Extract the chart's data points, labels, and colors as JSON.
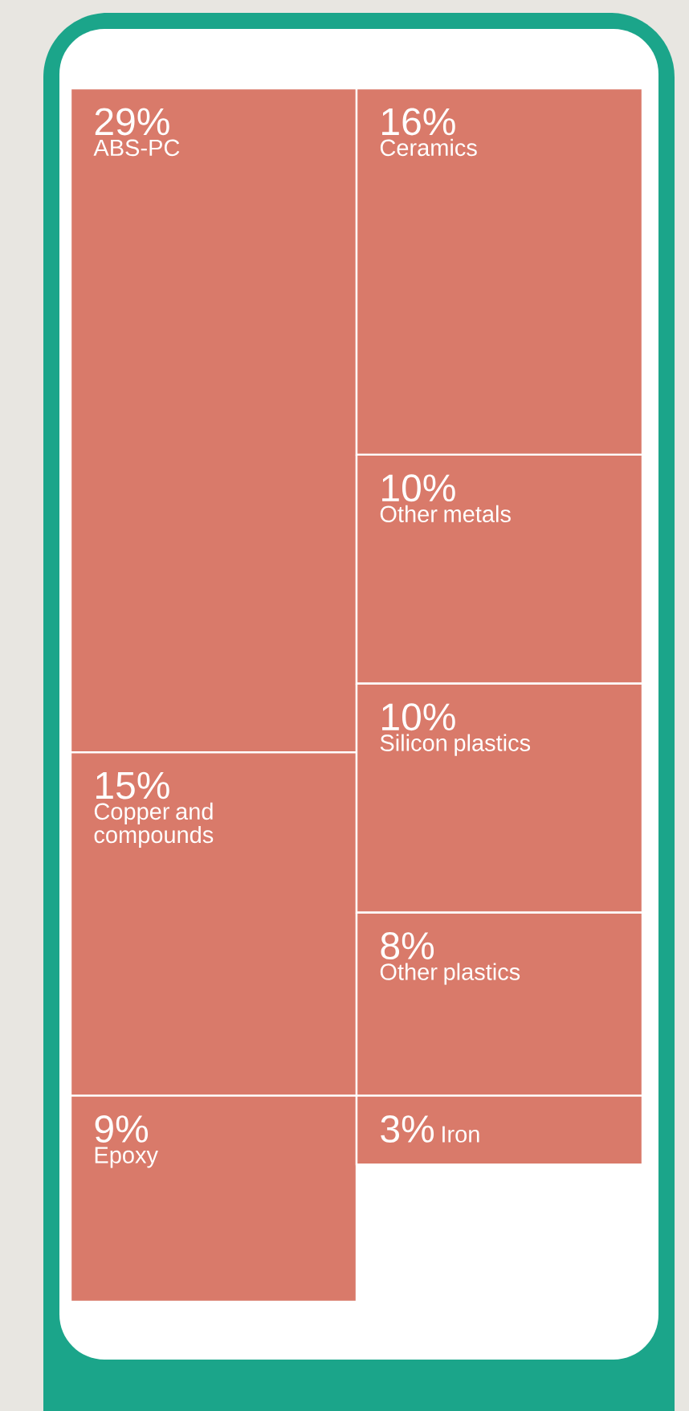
{
  "chart_data": {
    "type": "other",
    "color": "#d97a6a",
    "categories": [
      "ABS-PC",
      "Copper and compounds",
      "Epoxy",
      "Ceramics",
      "Other metals",
      "Silicon plastics",
      "Other plastics",
      "Iron"
    ],
    "values": [
      29,
      15,
      9,
      16,
      10,
      10,
      8,
      3
    ],
    "value_labels": [
      "29%",
      "15%",
      "9%",
      "16%",
      "10%",
      "10%",
      "8%",
      "3%"
    ]
  }
}
